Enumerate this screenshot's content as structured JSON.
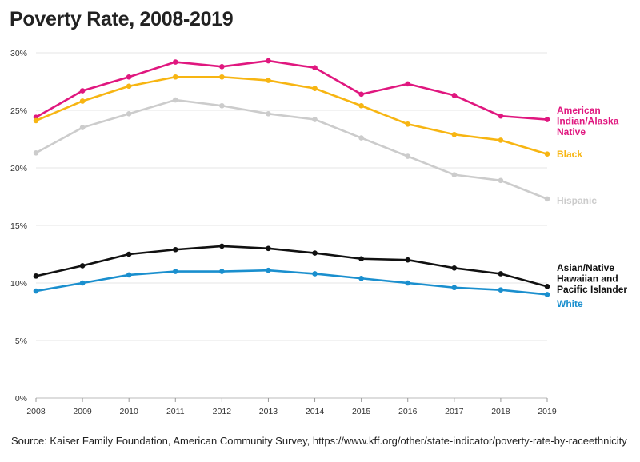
{
  "title": "Poverty Rate, 2008-2019",
  "source": "Source: Kaiser Family Foundation, American Community Survey, https://www.kff.org/other/state-indicator/poverty-rate-by-raceethnicity",
  "chart_data": {
    "type": "line",
    "title": "Poverty Rate, 2008-2019",
    "xlabel": "",
    "ylabel": "",
    "x": [
      2008,
      2009,
      2010,
      2011,
      2012,
      2013,
      2014,
      2015,
      2016,
      2017,
      2018,
      2019
    ],
    "y_ticks": [
      "0%",
      "5%",
      "10%",
      "15%",
      "20%",
      "25%",
      "30%"
    ],
    "ylim": [
      0,
      30
    ],
    "grid": true,
    "legend": "direct labels at right end of lines",
    "series": [
      {
        "name": "American Indian/Alaska Native",
        "label_lines": [
          "American",
          "Indian/Alaska",
          "Native"
        ],
        "color": "#e0177f",
        "values": [
          24.4,
          26.7,
          27.9,
          29.2,
          28.8,
          29.3,
          28.7,
          26.4,
          27.3,
          26.3,
          24.5,
          24.2
        ]
      },
      {
        "name": "Black",
        "label_lines": [
          "Black"
        ],
        "color": "#f7b512",
        "values": [
          24.1,
          25.8,
          27.1,
          27.9,
          27.9,
          27.6,
          26.9,
          25.4,
          23.8,
          22.9,
          22.4,
          21.2
        ]
      },
      {
        "name": "Hispanic",
        "label_lines": [
          "Hispanic"
        ],
        "color": "#cccccc",
        "values": [
          21.3,
          23.5,
          24.7,
          25.9,
          25.4,
          24.7,
          24.2,
          22.6,
          21.0,
          19.4,
          18.9,
          17.3
        ]
      },
      {
        "name": "Asian/Native Hawaiian and Pacific Islander",
        "label_lines": [
          "Asian/Native",
          "Hawaiian and",
          "Pacific Islander"
        ],
        "color": "#111111",
        "values": [
          10.6,
          11.5,
          12.5,
          12.9,
          13.2,
          13.0,
          12.6,
          12.1,
          12.0,
          11.3,
          10.8,
          9.7
        ]
      },
      {
        "name": "White",
        "label_lines": [
          "White"
        ],
        "color": "#1a8fce",
        "values": [
          9.3,
          10.0,
          10.7,
          11.0,
          11.0,
          11.1,
          10.8,
          10.4,
          10.0,
          9.6,
          9.4,
          9.0
        ]
      }
    ]
  }
}
